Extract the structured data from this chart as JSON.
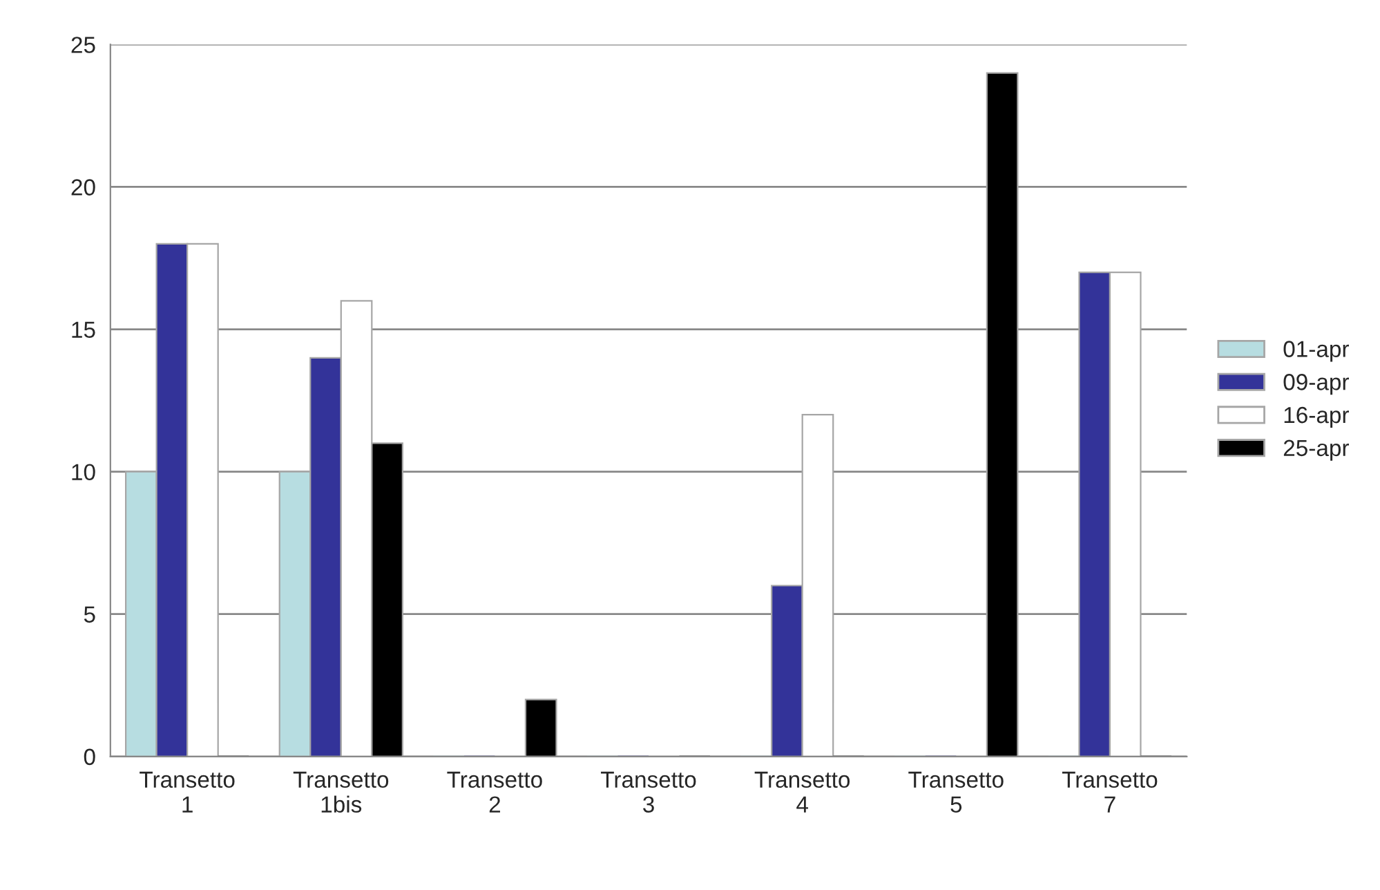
{
  "chart_data": {
    "type": "bar",
    "categories": [
      "Transetto\n1",
      "Transetto\n1bis",
      "Transetto\n2",
      "Transetto\n3",
      "Transetto\n4",
      "Transetto\n5",
      "Transetto\n7"
    ],
    "series": [
      {
        "name": "01-apr",
        "color": "#b7dde1",
        "values": [
          10,
          10,
          0,
          0,
          0,
          0,
          0
        ]
      },
      {
        "name": "09-apr",
        "color": "#333399",
        "values": [
          18,
          14,
          0,
          0,
          6,
          0,
          17
        ]
      },
      {
        "name": "16-apr",
        "color": "#ffffff",
        "values": [
          18,
          16,
          0,
          0,
          12,
          0,
          17
        ]
      },
      {
        "name": "25-apr",
        "color": "#000000",
        "values": [
          0,
          11,
          2,
          0,
          0,
          24,
          0
        ]
      }
    ],
    "ylim": [
      0,
      25
    ],
    "yticks": [
      0,
      5,
      10,
      15,
      20,
      25
    ],
    "grid": "y",
    "legend": "right"
  }
}
